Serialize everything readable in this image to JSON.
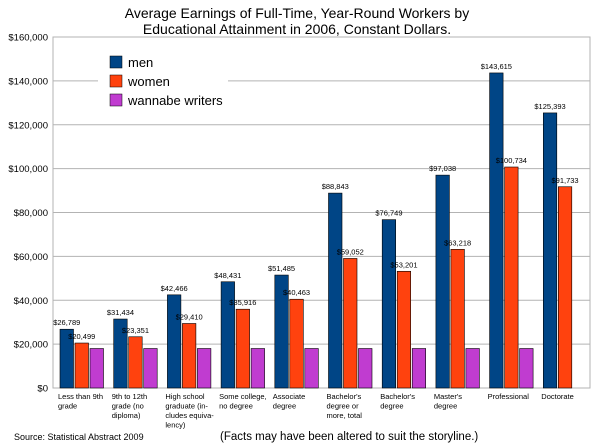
{
  "chart_data": {
    "type": "bar",
    "title": [
      "Average Earnings of Full-Time, Year-Round Workers by",
      "Educational Attainment in 2006, Constant Dollars."
    ],
    "xlabel": "",
    "ylabel": "",
    "ylim": [
      0,
      160000
    ],
    "yticks": [
      0,
      20000,
      40000,
      60000,
      80000,
      100000,
      120000,
      140000,
      160000
    ],
    "ytick_labels": [
      "$0",
      "$20,000",
      "$40,000",
      "$60,000",
      "$80,000",
      "$100,000",
      "$120,000",
      "$140,000",
      "$160,000"
    ],
    "grid": true,
    "legend_position": "top-left",
    "categories": [
      [
        "Less than 9th",
        "grade"
      ],
      [
        "9th to 12th",
        "grade (no",
        "diploma)"
      ],
      [
        "High school",
        "graduate (in-",
        "cludes equiva-",
        "lency)"
      ],
      [
        "Some college,",
        "no degree"
      ],
      [
        "Associate",
        "degree"
      ],
      [
        "Bachelor's",
        "degree or",
        "more, total"
      ],
      [
        "Bachelor's",
        "degree"
      ],
      [
        "Master's",
        "degree"
      ],
      [
        "Professional"
      ],
      [
        "Doctorate"
      ]
    ],
    "series": [
      {
        "name": "men",
        "color": "#004586",
        "values": [
          26789,
          31434,
          42466,
          48431,
          51485,
          88843,
          76749,
          97038,
          143615,
          125393
        ],
        "labels": [
          "$26,789",
          "$31,434",
          "$42,466",
          "$48,431",
          "$51,485",
          "$88,843",
          "$76,749",
          "$97,038",
          "$143,615",
          "$125,393"
        ]
      },
      {
        "name": "women",
        "color": "#ff420e",
        "values": [
          20499,
          23351,
          29410,
          35916,
          40463,
          59052,
          53201,
          63218,
          100734,
          91733
        ],
        "labels": [
          "$20,499",
          "$23,351",
          "$29,410",
          "$35,916",
          "$40,463",
          "$59,052",
          "$53,201",
          "$63,218",
          "$100,734",
          "$91,733"
        ]
      },
      {
        "name": "wannabe writers",
        "color": "#c03cd0",
        "values": [
          18000,
          18000,
          18000,
          18000,
          18000,
          18000,
          18000,
          18000,
          18000,
          null
        ],
        "labels": []
      }
    ]
  },
  "footer": {
    "source": "Source: Statistical Abstract 2009",
    "note": "(Facts may have been altered to suit the storyline.)"
  }
}
